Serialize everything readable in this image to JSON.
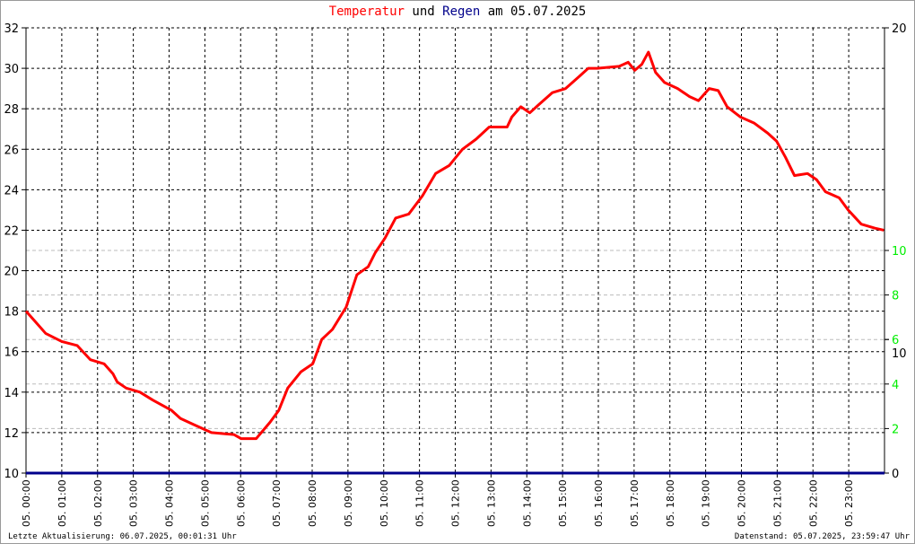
{
  "title": {
    "part1": "Temperatur",
    "part2": "und",
    "part3": "Regen",
    "part4": "am 05.07.2025"
  },
  "footer": {
    "left": "Letzte Aktualisierung: 06.07.2025, 00:01:31 Uhr",
    "right": "Datenstand: 05.07.2025, 23:59:47 Uhr"
  },
  "colors": {
    "temperature": "#ff0000",
    "rain": "#00008b",
    "right_axis_green": "#00ee00"
  },
  "chart_data": {
    "type": "line",
    "x_tick_labels": [
      "05. 00:00",
      "05. 01:00",
      "05. 02:00",
      "05. 03:00",
      "05. 04:00",
      "05. 05:00",
      "05. 06:00",
      "05. 07:00",
      "05. 08:00",
      "05. 09:00",
      "05. 10:00",
      "05. 11:00",
      "05. 12:00",
      "05. 13:00",
      "05. 14:00",
      "05. 15:00",
      "05. 16:00",
      "05. 17:00",
      "05. 18:00",
      "05. 19:00",
      "05. 20:00",
      "05. 21:00",
      "05. 22:00",
      "05. 23:00"
    ],
    "xlim": [
      "00:00",
      "24:00"
    ],
    "left_axis": {
      "ylim": [
        10,
        32
      ],
      "ticks": [
        10,
        12,
        14,
        16,
        18,
        20,
        22,
        24,
        26,
        28,
        30,
        32
      ]
    },
    "right_axis": {
      "ylim": [
        0,
        20
      ],
      "black_ticks": [
        "0",
        "10",
        "20"
      ],
      "green_ticks": [
        "2",
        "4",
        "6",
        "8",
        "10"
      ]
    },
    "grid": true,
    "series": [
      {
        "name": "Temperatur",
        "color": "#ff0000",
        "points": [
          [
            "00:00",
            18.0
          ],
          [
            "00:18",
            17.4
          ],
          [
            "00:33",
            16.9
          ],
          [
            "01:00",
            16.5
          ],
          [
            "01:26",
            16.3
          ],
          [
            "01:48",
            15.6
          ],
          [
            "02:11",
            15.4
          ],
          [
            "02:26",
            14.9
          ],
          [
            "02:33",
            14.5
          ],
          [
            "02:48",
            14.2
          ],
          [
            "03:11",
            14.0
          ],
          [
            "03:33",
            13.6
          ],
          [
            "04:04",
            13.1
          ],
          [
            "04:19",
            12.7
          ],
          [
            "04:41",
            12.4
          ],
          [
            "05:11",
            12.0
          ],
          [
            "05:49",
            11.9
          ],
          [
            "06:01",
            11.7
          ],
          [
            "06:26",
            11.7
          ],
          [
            "06:49",
            12.5
          ],
          [
            "07:04",
            13.1
          ],
          [
            "07:19",
            14.2
          ],
          [
            "07:41",
            15.0
          ],
          [
            "08:01",
            15.4
          ],
          [
            "08:16",
            16.6
          ],
          [
            "08:34",
            17.1
          ],
          [
            "08:57",
            18.2
          ],
          [
            "09:15",
            19.8
          ],
          [
            "09:34",
            20.2
          ],
          [
            "09:46",
            20.9
          ],
          [
            "10:02",
            21.6
          ],
          [
            "10:20",
            22.6
          ],
          [
            "10:42",
            22.8
          ],
          [
            "11:05",
            23.7
          ],
          [
            "11:27",
            24.8
          ],
          [
            "11:50",
            25.2
          ],
          [
            "12:12",
            26.0
          ],
          [
            "12:35",
            26.5
          ],
          [
            "12:57",
            27.1
          ],
          [
            "13:27",
            27.1
          ],
          [
            "13:35",
            27.6
          ],
          [
            "13:50",
            28.1
          ],
          [
            "14:05",
            27.8
          ],
          [
            "14:20",
            28.2
          ],
          [
            "14:43",
            28.8
          ],
          [
            "15:05",
            29.0
          ],
          [
            "15:28",
            29.6
          ],
          [
            "15:43",
            30.0
          ],
          [
            "15:58",
            30.0
          ],
          [
            "16:35",
            30.1
          ],
          [
            "16:50",
            30.3
          ],
          [
            "17:01",
            29.9
          ],
          [
            "17:13",
            30.2
          ],
          [
            "17:24",
            30.8
          ],
          [
            "17:36",
            29.8
          ],
          [
            "17:51",
            29.3
          ],
          [
            "18:13",
            29.0
          ],
          [
            "18:33",
            28.6
          ],
          [
            "18:48",
            28.4
          ],
          [
            "19:06",
            29.0
          ],
          [
            "19:21",
            28.9
          ],
          [
            "19:36",
            28.1
          ],
          [
            "19:58",
            27.6
          ],
          [
            "20:21",
            27.3
          ],
          [
            "20:44",
            26.8
          ],
          [
            "20:59",
            26.4
          ],
          [
            "21:14",
            25.6
          ],
          [
            "21:29",
            24.7
          ],
          [
            "21:51",
            24.8
          ],
          [
            "22:06",
            24.5
          ],
          [
            "22:21",
            23.9
          ],
          [
            "22:44",
            23.6
          ],
          [
            "22:59",
            23.0
          ],
          [
            "23:21",
            22.3
          ],
          [
            "23:44",
            22.1
          ],
          [
            "23:59",
            22.0
          ]
        ]
      },
      {
        "name": "Regen",
        "color": "#00008b",
        "axis": "right",
        "points": [
          [
            "00:00",
            0
          ],
          [
            "24:00",
            0
          ]
        ]
      }
    ]
  }
}
